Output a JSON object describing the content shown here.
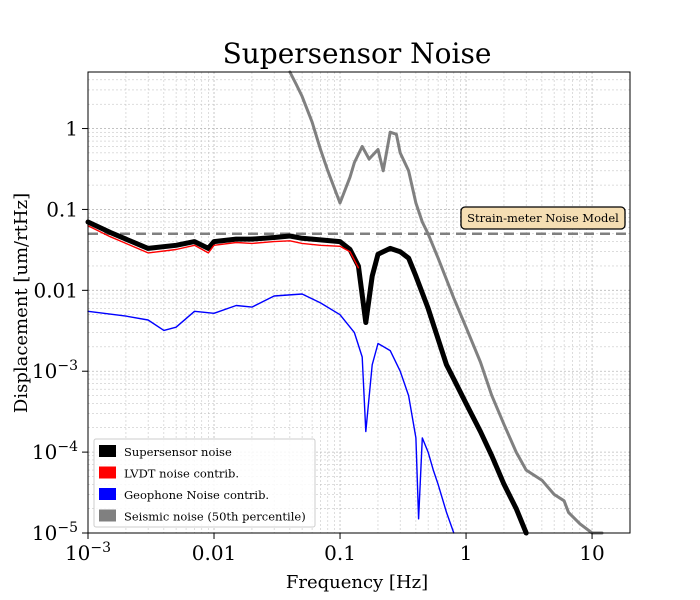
{
  "chart_data": {
    "type": "line",
    "title": "Supersensor Noise",
    "xlabel": "Frequency [Hz]",
    "ylabel": "Displacement [um/rtHz]",
    "x_scale": "log",
    "y_scale": "log",
    "xlim": [
      0.001,
      20
    ],
    "ylim": [
      1e-05,
      5
    ],
    "grid": true,
    "legend_position": "lower-left",
    "x_ticks": [
      {
        "value": 0.001,
        "base": "10",
        "exp": "−3"
      },
      {
        "value": 0.01,
        "label": "0.01"
      },
      {
        "value": 0.1,
        "label": "0.1"
      },
      {
        "value": 1,
        "label": "1"
      },
      {
        "value": 10,
        "label": "10"
      }
    ],
    "y_ticks": [
      {
        "value": 1e-05,
        "base": "10",
        "exp": "−5"
      },
      {
        "value": 0.0001,
        "base": "10",
        "exp": "−4"
      },
      {
        "value": 0.001,
        "base": "10",
        "exp": "−3"
      },
      {
        "value": 0.01,
        "label": "0.01"
      },
      {
        "value": 0.1,
        "label": "0.1"
      },
      {
        "value": 1,
        "label": "1"
      }
    ],
    "annotation": {
      "text": "Strain-meter Noise Model",
      "value": 0.05
    },
    "series": [
      {
        "name": "Seismic noise (50th percentile)",
        "color": "#808080",
        "width": 3,
        "x": [
          0.04,
          0.045,
          0.05,
          0.06,
          0.07,
          0.08,
          0.1,
          0.12,
          0.13,
          0.15,
          0.17,
          0.2,
          0.22,
          0.25,
          0.28,
          0.3,
          0.35,
          0.4,
          0.45,
          0.5,
          0.6,
          0.8,
          1.0,
          1.3,
          1.6,
          2.0,
          2.5,
          3.0,
          4.0,
          5.0,
          6.0,
          6.5,
          8.0,
          10.0,
          12.0
        ],
        "y": [
          5,
          3.5,
          2.5,
          1.2,
          0.55,
          0.3,
          0.12,
          0.25,
          0.38,
          0.6,
          0.42,
          0.55,
          0.3,
          0.9,
          0.85,
          0.5,
          0.3,
          0.12,
          0.07,
          0.05,
          0.025,
          0.008,
          0.0035,
          0.0013,
          0.0005,
          0.00022,
          0.0001,
          6e-05,
          4.5e-05,
          3e-05,
          2.5e-05,
          1.8e-05,
          1.3e-05,
          1e-05,
          1e-05
        ]
      },
      {
        "name": "Supersensor noise",
        "color": "#000000",
        "width": 5,
        "x": [
          0.001,
          0.0015,
          0.002,
          0.003,
          0.005,
          0.007,
          0.009,
          0.01,
          0.015,
          0.02,
          0.03,
          0.04,
          0.05,
          0.07,
          0.1,
          0.12,
          0.14,
          0.16,
          0.18,
          0.2,
          0.25,
          0.3,
          0.35,
          0.4,
          0.5,
          0.6,
          0.7,
          0.8,
          1.0,
          1.3,
          1.6,
          2.0,
          2.5,
          3.0
        ],
        "y": [
          0.07,
          0.052,
          0.043,
          0.033,
          0.036,
          0.04,
          0.033,
          0.04,
          0.043,
          0.043,
          0.045,
          0.047,
          0.044,
          0.042,
          0.04,
          0.032,
          0.02,
          0.004,
          0.015,
          0.028,
          0.033,
          0.03,
          0.025,
          0.015,
          0.006,
          0.0025,
          0.0012,
          0.0008,
          0.0004,
          0.00018,
          9e-05,
          4e-05,
          2e-05,
          1e-05
        ]
      },
      {
        "name": "LVDT noise contrib.",
        "color": "#ff0000",
        "width": 1.4,
        "x": [
          0.001,
          0.0015,
          0.002,
          0.003,
          0.005,
          0.007,
          0.009,
          0.01,
          0.015,
          0.02,
          0.03,
          0.04,
          0.05,
          0.07,
          0.1,
          0.12,
          0.14
        ],
        "y": [
          0.063,
          0.046,
          0.038,
          0.029,
          0.032,
          0.036,
          0.029,
          0.036,
          0.039,
          0.038,
          0.04,
          0.041,
          0.038,
          0.036,
          0.035,
          0.03,
          0.019
        ]
      },
      {
        "name": "Geophone Noise contrib.",
        "color": "#0000ff",
        "width": 1.4,
        "x": [
          0.001,
          0.002,
          0.003,
          0.004,
          0.005,
          0.007,
          0.01,
          0.015,
          0.02,
          0.03,
          0.05,
          0.07,
          0.1,
          0.13,
          0.15,
          0.16,
          0.18,
          0.2,
          0.25,
          0.3,
          0.35,
          0.4,
          0.42,
          0.45,
          0.5,
          0.55,
          0.6,
          0.7,
          0.8
        ],
        "y": [
          0.0055,
          0.0048,
          0.0043,
          0.0032,
          0.0035,
          0.0055,
          0.0052,
          0.0065,
          0.0062,
          0.0085,
          0.009,
          0.007,
          0.005,
          0.003,
          0.0015,
          0.00018,
          0.0012,
          0.0022,
          0.0018,
          0.001,
          0.0005,
          0.00015,
          1.5e-05,
          0.00015,
          0.0001,
          6e-05,
          4e-05,
          1.8e-05,
          1e-05
        ]
      }
    ],
    "legend": [
      {
        "label": "Supersensor noise",
        "color": "#000000"
      },
      {
        "label": "LVDT noise contrib.",
        "color": "#ff0000"
      },
      {
        "label": "Geophone Noise contrib.",
        "color": "#0000ff"
      },
      {
        "label": "Seismic noise (50th percentile)",
        "color": "#808080"
      }
    ]
  }
}
